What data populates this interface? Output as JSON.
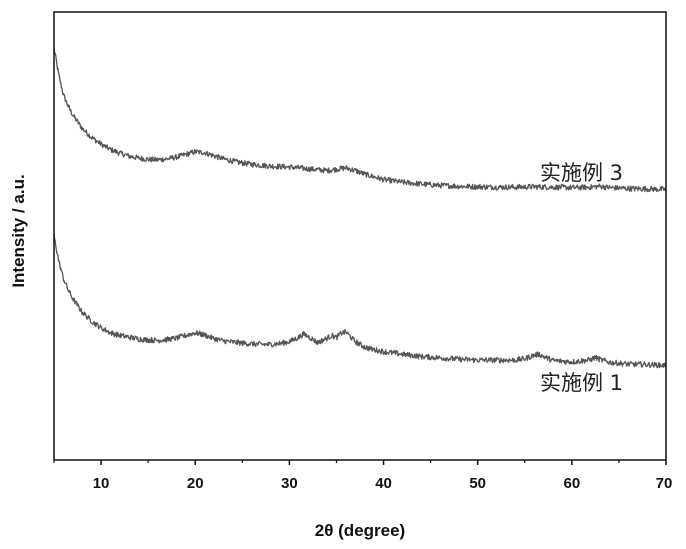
{
  "chart_data": {
    "type": "line",
    "xlabel": "2θ (degree)",
    "ylabel": "Intensity / a.u.",
    "xlim": [
      5,
      70
    ],
    "ylim": [
      0,
      1
    ],
    "xticks": [
      10,
      20,
      30,
      40,
      50,
      60,
      70
    ],
    "x_tick_labels": [
      "10",
      "20",
      "30",
      "40",
      "50",
      "60",
      "70"
    ],
    "y_tick_labels": "none",
    "grid": false,
    "legend": "none",
    "line_color": "#555555",
    "series": [
      {
        "name": "实施例 3",
        "x": [
          5,
          5.5,
          6,
          6.5,
          7,
          7.5,
          8,
          9,
          10,
          11,
          12,
          13,
          14,
          15,
          16,
          17,
          18,
          19,
          20,
          21,
          22,
          23,
          24,
          25,
          26,
          27,
          28,
          29,
          30,
          31,
          32,
          33,
          34,
          35,
          36,
          37,
          38,
          39,
          40,
          42,
          44,
          46,
          48,
          50,
          52,
          54,
          56,
          58,
          60,
          62,
          63,
          64,
          66,
          68,
          70
        ],
        "y": [
          0.92,
          0.86,
          0.815,
          0.79,
          0.77,
          0.755,
          0.74,
          0.72,
          0.705,
          0.693,
          0.685,
          0.678,
          0.674,
          0.671,
          0.67,
          0.672,
          0.676,
          0.682,
          0.688,
          0.686,
          0.679,
          0.672,
          0.667,
          0.663,
          0.66,
          0.658,
          0.656,
          0.655,
          0.654,
          0.652,
          0.65,
          0.648,
          0.646,
          0.649,
          0.652,
          0.646,
          0.638,
          0.632,
          0.626,
          0.62,
          0.616,
          0.613,
          0.611,
          0.61,
          0.609,
          0.609,
          0.61,
          0.609,
          0.608,
          0.609,
          0.611,
          0.608,
          0.606,
          0.605,
          0.604
        ]
      },
      {
        "name": "实施例 1",
        "x": [
          5,
          5.5,
          6,
          6.5,
          7,
          7.5,
          8,
          9,
          10,
          11,
          12,
          13,
          14,
          15,
          16,
          17,
          18,
          19,
          20,
          21,
          22,
          23,
          24,
          25,
          26,
          27,
          28,
          29,
          30,
          31,
          31.5,
          32,
          33,
          34,
          34.5,
          35,
          35.5,
          36,
          37,
          38,
          39,
          40,
          42,
          44,
          46,
          48,
          50,
          52,
          54,
          55,
          56,
          56.5,
          57,
          58,
          60,
          61,
          62,
          62.5,
          63,
          64,
          66,
          68,
          70
        ],
        "y": [
          0.5,
          0.445,
          0.405,
          0.38,
          0.36,
          0.345,
          0.33,
          0.31,
          0.295,
          0.284,
          0.278,
          0.274,
          0.27,
          0.268,
          0.267,
          0.269,
          0.272,
          0.278,
          0.284,
          0.279,
          0.271,
          0.266,
          0.263,
          0.261,
          0.259,
          0.258,
          0.258,
          0.26,
          0.264,
          0.274,
          0.281,
          0.276,
          0.262,
          0.272,
          0.278,
          0.273,
          0.283,
          0.286,
          0.264,
          0.252,
          0.246,
          0.242,
          0.236,
          0.231,
          0.228,
          0.225,
          0.223,
          0.223,
          0.223,
          0.226,
          0.234,
          0.236,
          0.231,
          0.222,
          0.219,
          0.221,
          0.224,
          0.229,
          0.224,
          0.218,
          0.214,
          0.213,
          0.211
        ]
      }
    ]
  }
}
